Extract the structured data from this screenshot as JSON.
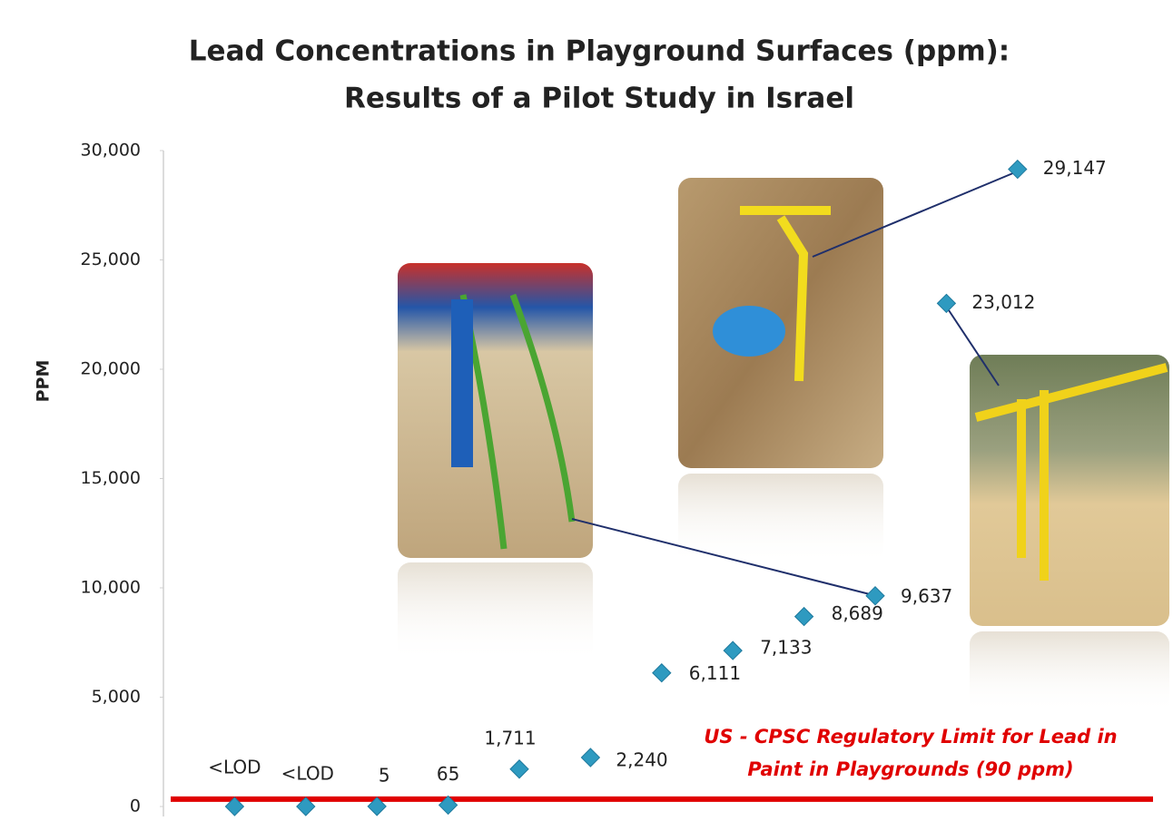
{
  "chart_data": {
    "type": "scatter",
    "title": [
      "Lead Concentrations in Playground Surfaces (ppm):",
      "Results of a Pilot Study in Israel"
    ],
    "y_label": "PPM",
    "categories": [
      null,
      null,
      null,
      null,
      null,
      null,
      null,
      null,
      null,
      null,
      null,
      null
    ],
    "values": [
      0,
      0,
      5,
      65,
      1711,
      2240,
      6111,
      7133,
      8689,
      9637,
      23012,
      29147
    ],
    "value_labels": [
      "<LOD",
      "<LOD",
      "5",
      "65",
      "1,711",
      "2,240",
      "6,111",
      "7,133",
      "8,689",
      "9,637",
      "23,012",
      "29,147"
    ],
    "color": "#2e9ac0",
    "ylim": [
      0,
      30000
    ],
    "yticks": [
      0,
      {
        "value": 5000,
        "label": "5,000"
      },
      {
        "value": 10000,
        "label": "10,000"
      },
      {
        "value": 15000,
        "label": "15,000"
      },
      {
        "value": 20000,
        "label": "20,000"
      },
      {
        "value": 25000,
        "label": "25,000"
      },
      {
        "value": 30000,
        "label": "30,000"
      }
    ],
    "grid": false,
    "reference_line": {
      "value": 90,
      "color": "#e00000",
      "label": [
        "US - CPSC Regulatory Limit for Lead in",
        "Paint in Playgrounds (90 ppm)"
      ]
    }
  }
}
